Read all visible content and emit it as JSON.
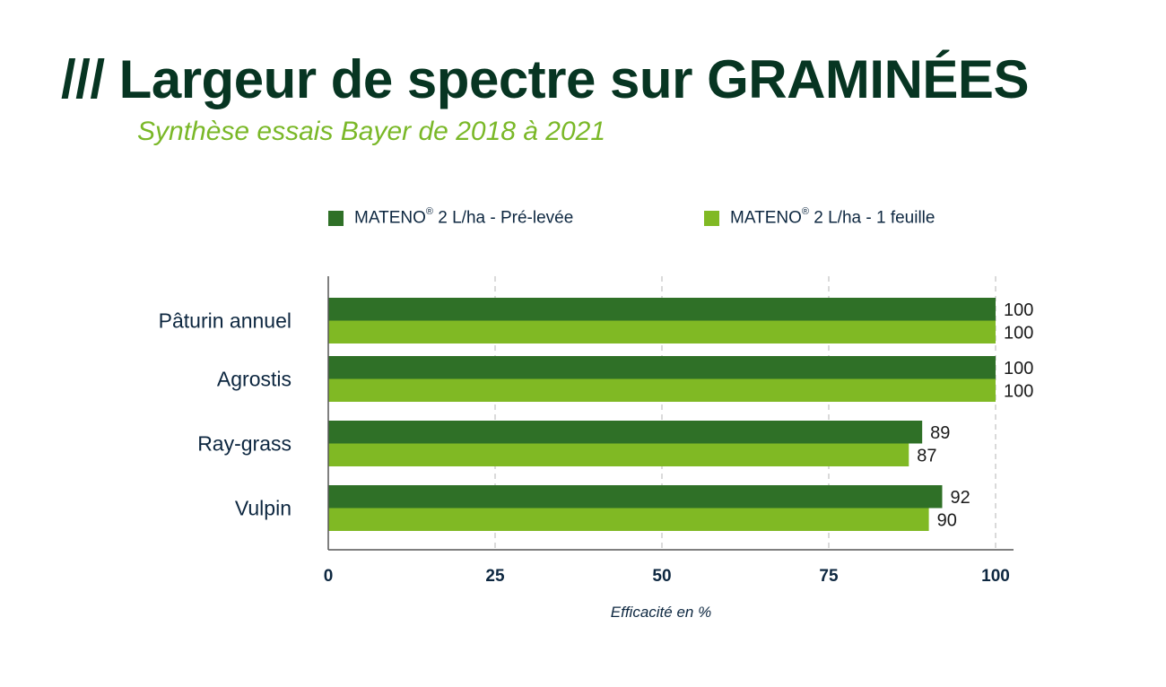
{
  "page": {
    "title": "/// Largeur de spectre sur GRAMINÉES",
    "subtitle": "Synthèse essais Bayer de 2018 à 2021"
  },
  "legend": [
    {
      "brand": "MATENO",
      "mark": "®",
      "rest": " 2 L/ha - Pré-levée",
      "color": "#2f7027"
    },
    {
      "brand": "MATENO",
      "mark": "®",
      "rest": " 2 L/ha - 1 feuille",
      "color": "#80b924"
    }
  ],
  "chart_data": {
    "type": "bar",
    "orientation": "horizontal",
    "title": "/// Largeur de spectre sur GRAMINÉES",
    "subtitle": "Synthèse essais Bayer de 2018 à 2021",
    "categories": [
      "Pâturin annuel",
      "Agrostis",
      "Ray-grass",
      "Vulpin"
    ],
    "series": [
      {
        "name": "MATENO® 2 L/ha - Pré-levée",
        "color": "#2f7027",
        "values": [
          100,
          100,
          89,
          92
        ]
      },
      {
        "name": "MATENO® 2 L/ha - 1 feuille",
        "color": "#80b924",
        "values": [
          100,
          100,
          87,
          90
        ]
      }
    ],
    "xlabel": "Efficacité en %",
    "ylabel": "",
    "xlim": [
      0,
      100
    ],
    "xticks": [
      "0",
      "25",
      "50",
      "75",
      "100"
    ],
    "grid": "vertical dashed",
    "legend_position": "top"
  }
}
